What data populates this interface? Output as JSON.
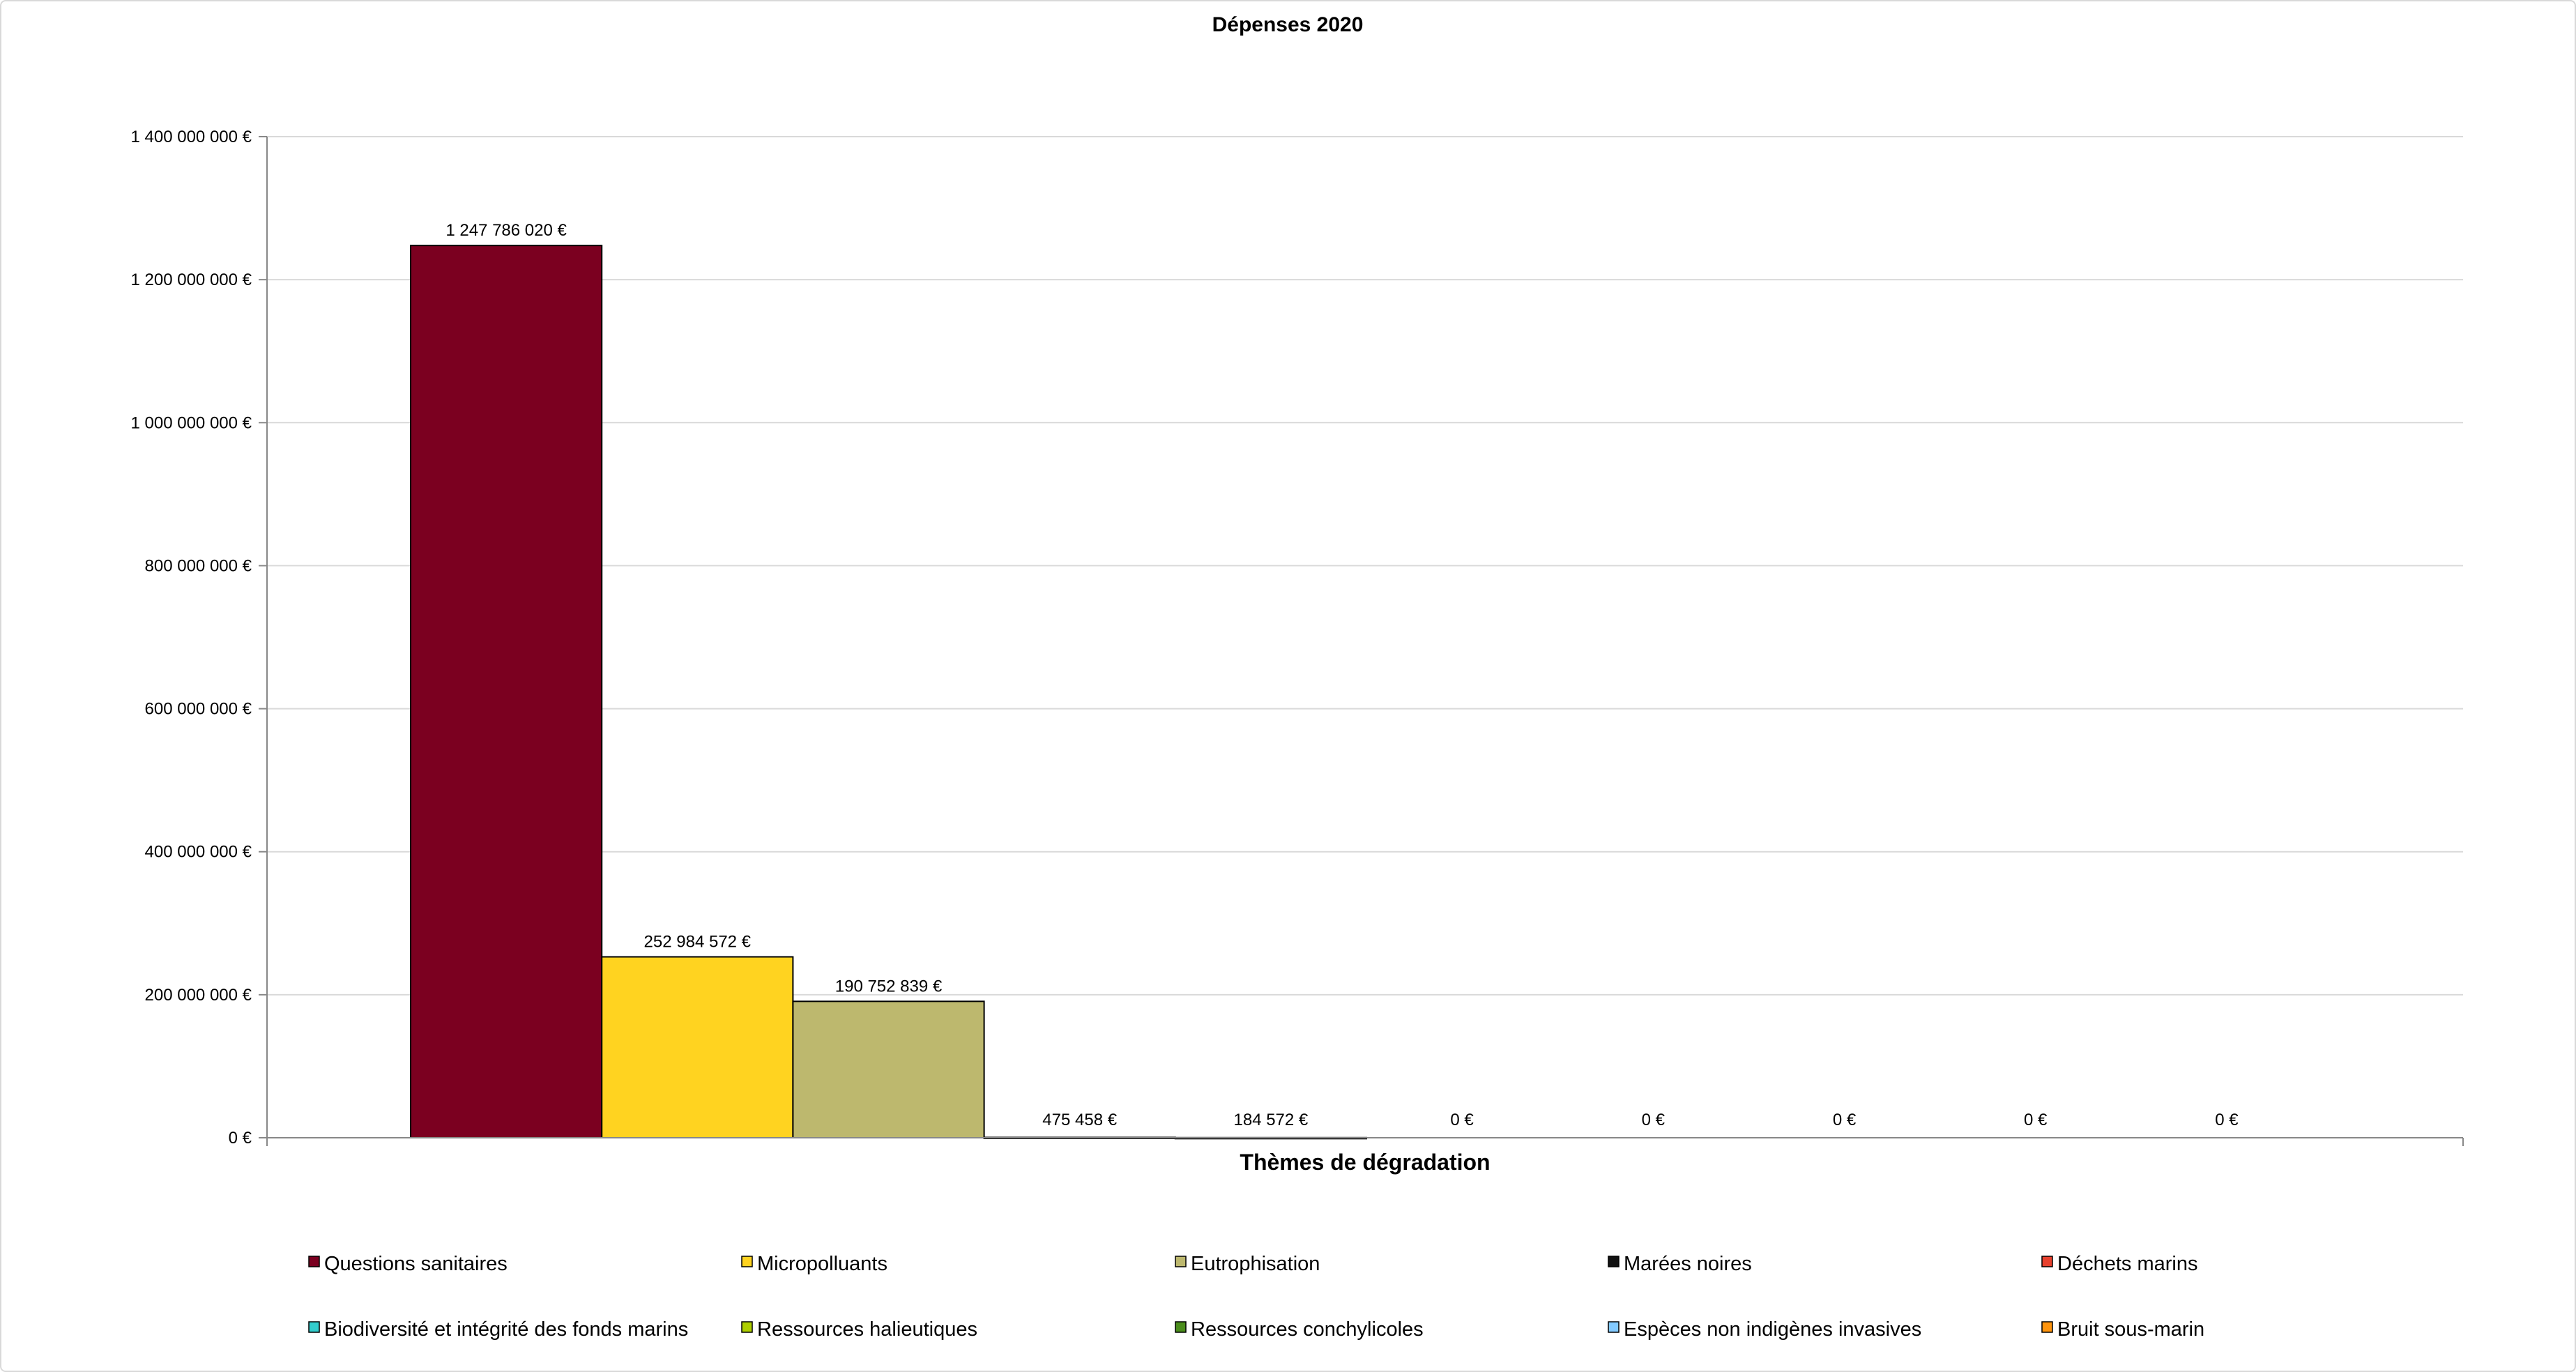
{
  "chart_data": {
    "type": "bar",
    "title": "Dépenses 2020",
    "xlabel": "Thèmes de dégradation",
    "ylabel": "",
    "ylim": [
      0,
      1400000000
    ],
    "yticks": [
      0,
      200000000,
      400000000,
      600000000,
      800000000,
      1000000000,
      1200000000,
      1400000000
    ],
    "ytick_labels": [
      "0 €",
      "200 000 000 €",
      "400 000 000 €",
      "600 000 000 €",
      "800 000 000 €",
      "1 000 000 000 €",
      "1 200 000 000 €",
      "1 400 000 000 €"
    ],
    "grid": true,
    "legend_position": "bottom",
    "series": [
      {
        "name": "Questions sanitaires",
        "value": 1247786020,
        "label": "1 247 786 020 €",
        "color": "#7b0020"
      },
      {
        "name": "Micropolluants",
        "value": 252984572,
        "label": "252 984 572 €",
        "color": "#ffd320"
      },
      {
        "name": "Eutrophisation",
        "value": 190752839,
        "label": "190 752 839 €",
        "color": "#bdb86e"
      },
      {
        "name": "Marées noires",
        "value": 475458,
        "label": "475 458 €",
        "color": "#111111"
      },
      {
        "name": "Déchets marins",
        "value": 184572,
        "label": "184 572 €",
        "color": "#e8412e"
      },
      {
        "name": "Biodiversité et intégrité des fonds marins",
        "value": 0,
        "label": "0 €",
        "color": "#33cccc"
      },
      {
        "name": "Ressources halieutiques",
        "value": 0,
        "label": "0 €",
        "color": "#aecf00"
      },
      {
        "name": "Ressources conchylicoles",
        "value": 0,
        "label": "0 €",
        "color": "#4b8d1c"
      },
      {
        "name": "Espèces non indigènes invasives",
        "value": 0,
        "label": "0 €",
        "color": "#83caff"
      },
      {
        "name": "Bruit sous-marin",
        "value": 0,
        "label": "0 €",
        "color": "#ff950e"
      }
    ]
  }
}
